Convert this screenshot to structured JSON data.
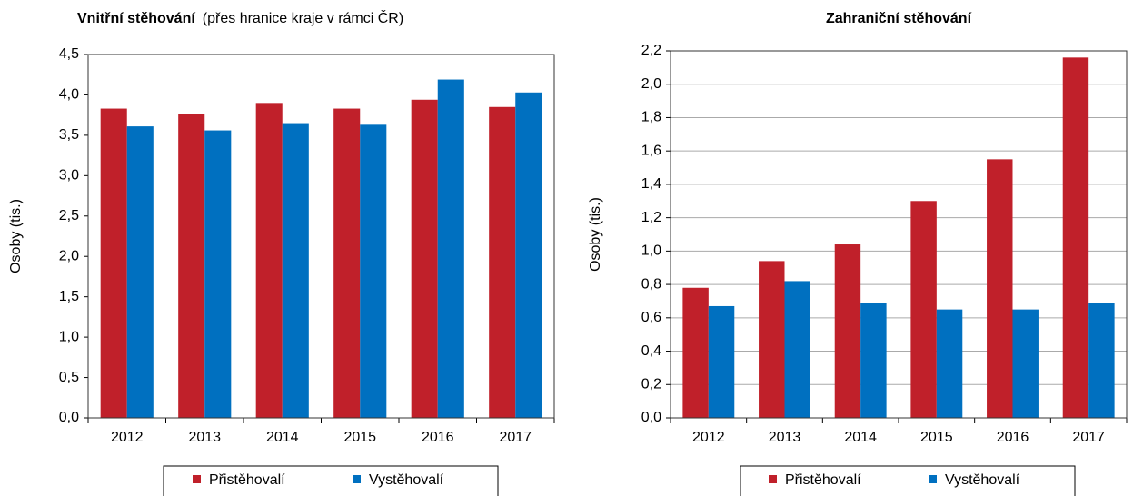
{
  "chart_data": [
    {
      "type": "bar",
      "title": "Vnitřní stěhování",
      "subtitle": "(přes hranice kraje v rámci ČR)",
      "ylabel": "Osoby (tis.)",
      "categories": [
        "2012",
        "2013",
        "2014",
        "2015",
        "2016",
        "2017"
      ],
      "series": [
        {
          "name": "Přistěhovalí",
          "color": "#c0202a",
          "values": [
            3.83,
            3.76,
            3.9,
            3.83,
            3.94,
            3.85
          ]
        },
        {
          "name": "Vystěhovalí",
          "color": "#0070c0",
          "values": [
            3.61,
            3.56,
            3.65,
            3.63,
            4.19,
            4.03
          ]
        }
      ],
      "ylim": [
        0,
        4.5
      ],
      "yticks": [
        {
          "value": 0,
          "label": "0,0"
        },
        {
          "value": 0.5,
          "label": "0,5"
        },
        {
          "value": 1,
          "label": "1,0"
        },
        {
          "value": 1.5,
          "label": "1,5"
        },
        {
          "value": 2,
          "label": "2,0"
        },
        {
          "value": 2.5,
          "label": "2,5"
        },
        {
          "value": 3,
          "label": "3,0"
        },
        {
          "value": 3.5,
          "label": "3,5"
        },
        {
          "value": 4,
          "label": "4,0"
        },
        {
          "value": 4.5,
          "label": "4,5"
        }
      ],
      "grid": false,
      "legend": "bottom"
    },
    {
      "type": "bar",
      "title": "Zahraniční stěhování",
      "ylabel": "Osoby (tis.)",
      "categories": [
        "2012",
        "2013",
        "2014",
        "2015",
        "2016",
        "2017"
      ],
      "series": [
        {
          "name": "Přistěhovalí",
          "color": "#c0202a",
          "values": [
            0.78,
            0.94,
            1.04,
            1.3,
            1.55,
            2.16
          ]
        },
        {
          "name": "Vystěhovalí",
          "color": "#0070c0",
          "values": [
            0.67,
            0.82,
            0.69,
            0.65,
            0.65,
            0.69
          ]
        }
      ],
      "ylim": [
        0,
        2.2
      ],
      "yticks": [
        {
          "value": 0,
          "label": "0,0"
        },
        {
          "value": 0.2,
          "label": "0,2"
        },
        {
          "value": 0.4,
          "label": "0,4"
        },
        {
          "value": 0.6,
          "label": "0,6"
        },
        {
          "value": 0.8,
          "label": "0,8"
        },
        {
          "value": 1,
          "label": "1,0"
        },
        {
          "value": 1.2,
          "label": "1,2"
        },
        {
          "value": 1.4,
          "label": "1,4"
        },
        {
          "value": 1.6,
          "label": "1,6"
        },
        {
          "value": 1.8,
          "label": "1,8"
        },
        {
          "value": 2,
          "label": "2,0"
        },
        {
          "value": 2.2,
          "label": "2,2"
        }
      ],
      "grid": true,
      "legend": "bottom"
    }
  ]
}
